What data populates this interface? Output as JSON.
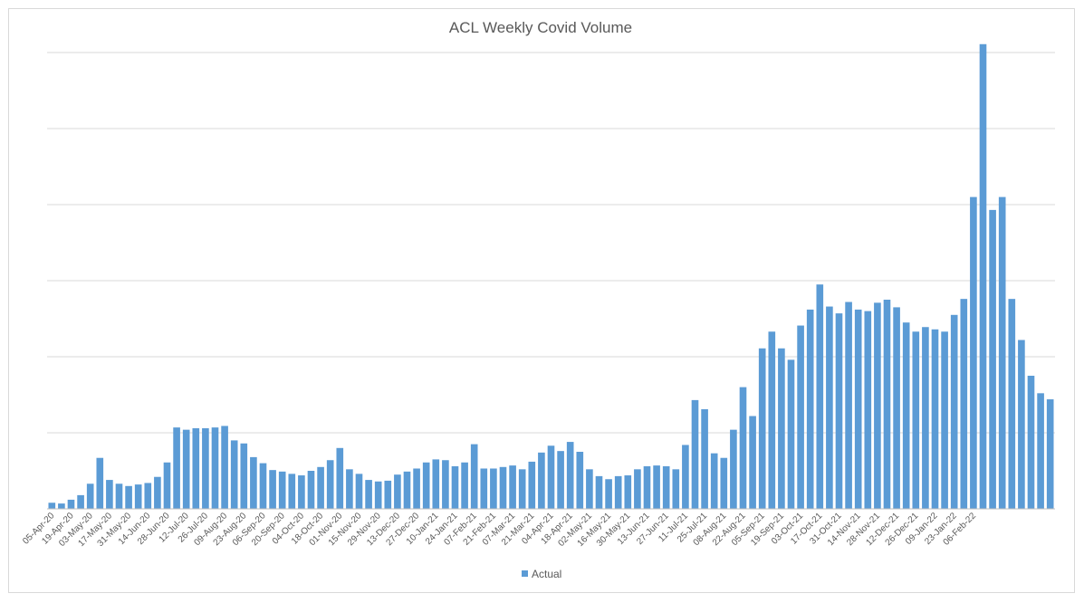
{
  "chart_data": {
    "type": "bar",
    "title": "ACL Weekly Covid Volume",
    "xlabel": "",
    "ylabel": "",
    "y_tick_labels_shown": false,
    "grid": true,
    "ylim": [
      0,
      600
    ],
    "legend": {
      "position": "bottom",
      "entries": [
        "Actual"
      ]
    },
    "series_color": "#5b9bd5",
    "x_tick_labels": [
      "05-Apr-20",
      "19-Apr-20",
      "03-May-20",
      "17-May-20",
      "31-May-20",
      "14-Jun-20",
      "28-Jun-20",
      "12-Jul-20",
      "26-Jul-20",
      "09-Aug-20",
      "23-Aug-20",
      "06-Sep-20",
      "20-Sep-20",
      "04-Oct-20",
      "18-Oct-20",
      "01-Nov-20",
      "15-Nov-20",
      "29-Nov-20",
      "13-Dec-20",
      "27-Dec-20",
      "10-Jan-21",
      "24-Jan-21",
      "07-Feb-21",
      "21-Feb-21",
      "07-Mar-21",
      "21-Mar-21",
      "04-Apr-21",
      "18-Apr-21",
      "02-May-21",
      "16-May-21",
      "30-May-21",
      "13-Jun-21",
      "27-Jun-21",
      "11-Jul-21",
      "25-Jul-21",
      "08-Aug-21",
      "22-Aug-21",
      "05-Sep-21",
      "19-Sep-21",
      "03-Oct-21",
      "17-Oct-21",
      "31-Oct-21",
      "14-Nov-21",
      "28-Nov-21",
      "12-Dec-21",
      "26-Dec-21",
      "09-Jan-22",
      "23-Jan-22",
      "06-Feb-22"
    ],
    "series": [
      {
        "name": "Actual",
        "values": [
          8,
          7,
          12,
          18,
          33,
          67,
          38,
          33,
          30,
          32,
          34,
          42,
          61,
          107,
          104,
          106,
          106,
          107,
          109,
          90,
          86,
          68,
          60,
          51,
          49,
          46,
          44,
          50,
          55,
          64,
          80,
          52,
          46,
          38,
          36,
          37,
          45,
          49,
          53,
          61,
          65,
          64,
          56,
          61,
          85,
          53,
          53,
          55,
          57,
          52,
          62,
          74,
          83,
          76,
          88,
          75,
          52,
          43,
          39,
          43,
          44,
          52,
          56,
          57,
          56,
          52,
          84,
          143,
          131,
          73,
          67,
          104,
          160,
          122,
          211,
          233,
          211,
          196,
          241,
          262,
          295,
          266,
          257,
          272,
          262,
          260,
          271,
          275,
          265,
          245,
          233,
          239,
          236,
          233,
          255,
          276,
          410,
          611,
          393,
          410,
          276,
          222,
          175,
          152,
          144
        ]
      }
    ]
  }
}
